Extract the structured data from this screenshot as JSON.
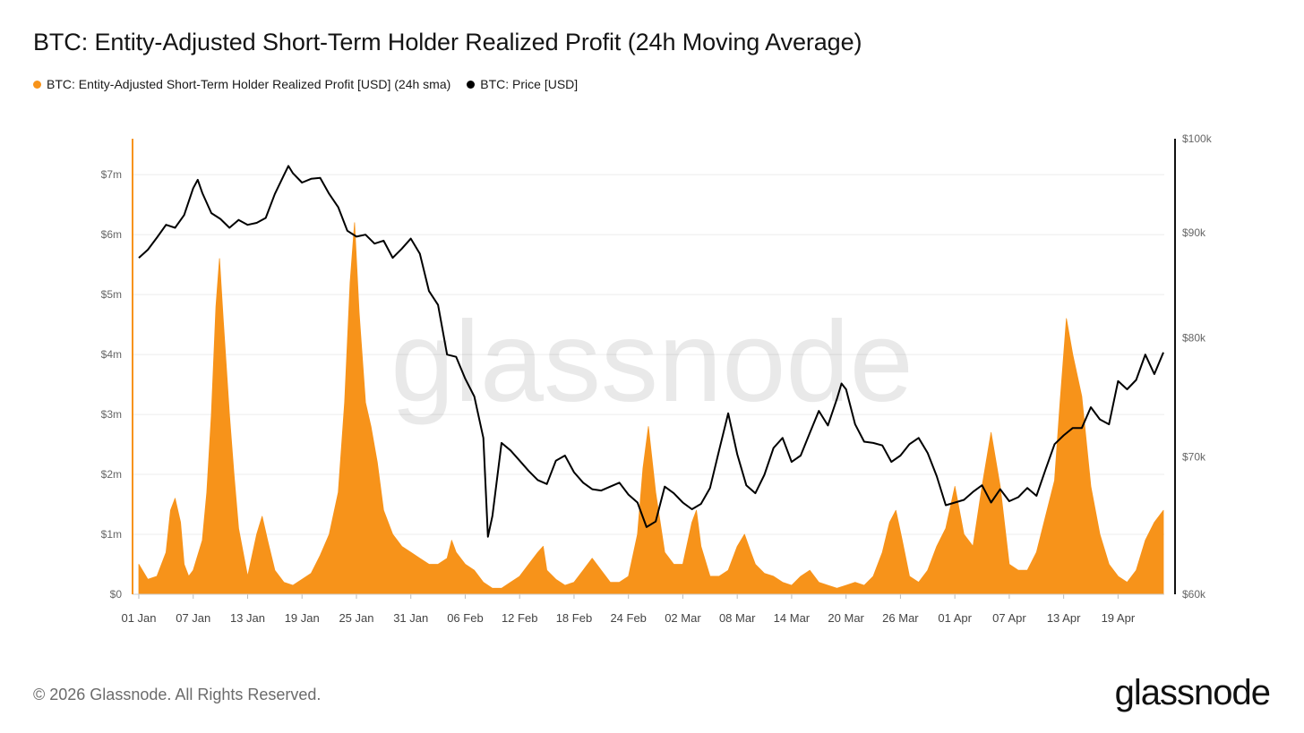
{
  "title": "BTC: Entity-Adjusted Short-Term Holder Realized Profit (24h Moving Average)",
  "legend": [
    {
      "label": "BTC: Entity-Adjusted Short-Term Holder Realized Profit [USD] (24h sma)",
      "color": "#f7931a"
    },
    {
      "label": "BTC: Price [USD]",
      "color": "#000000"
    }
  ],
  "footer": "© 2026 Glassnode. All Rights Reserved.",
  "brand": "glassnode",
  "watermark": "glassnode",
  "chart_data": {
    "type": "area",
    "x_ticks": [
      "01 Jan",
      "07 Jan",
      "13 Jan",
      "19 Jan",
      "25 Jan",
      "31 Jan",
      "06 Feb",
      "12 Feb",
      "18 Feb",
      "24 Feb",
      "02 Mar",
      "08 Mar",
      "14 Mar",
      "20 Mar",
      "26 Mar",
      "01 Apr",
      "07 Apr",
      "13 Apr",
      "19 Apr"
    ],
    "y_left_ticks": [
      "$0",
      "$1m",
      "$2m",
      "$3m",
      "$4m",
      "$5m",
      "$6m",
      "$7m"
    ],
    "y_left_range": [
      0,
      7600000
    ],
    "y_right_ticks": [
      "$60k",
      "$70k",
      "$80k",
      "$90k",
      "$100k"
    ],
    "y_right_range": [
      60000,
      100000
    ],
    "y_right_scale": "log",
    "grid": true,
    "legend_position": "top-left",
    "day_range": [
      0,
      113
    ],
    "series": [
      {
        "name": "BTC: Entity-Adjusted Short-Term Holder Realized Profit [USD] (24h sma)",
        "axis": "left",
        "color": "#f7931a",
        "style": "area",
        "points": [
          [
            0,
            500000
          ],
          [
            1,
            250000
          ],
          [
            2,
            300000
          ],
          [
            3,
            700000
          ],
          [
            3.5,
            1400000
          ],
          [
            4,
            1600000
          ],
          [
            4.6,
            1200000
          ],
          [
            5,
            500000
          ],
          [
            5.5,
            300000
          ],
          [
            6,
            400000
          ],
          [
            7,
            900000
          ],
          [
            7.5,
            1700000
          ],
          [
            8,
            3000000
          ],
          [
            8.5,
            4800000
          ],
          [
            8.9,
            5600000
          ],
          [
            9.3,
            4600000
          ],
          [
            10,
            3000000
          ],
          [
            10.5,
            2000000
          ],
          [
            11,
            1100000
          ],
          [
            12,
            300000
          ],
          [
            13,
            1000000
          ],
          [
            13.6,
            1300000
          ],
          [
            14.2,
            900000
          ],
          [
            15,
            400000
          ],
          [
            16,
            200000
          ],
          [
            17,
            150000
          ],
          [
            18,
            250000
          ],
          [
            19,
            350000
          ],
          [
            20,
            650000
          ],
          [
            21,
            1000000
          ],
          [
            22,
            1700000
          ],
          [
            22.7,
            3200000
          ],
          [
            23.3,
            5200000
          ],
          [
            23.8,
            6200000
          ],
          [
            24.3,
            4700000
          ],
          [
            25,
            3200000
          ],
          [
            25.6,
            2800000
          ],
          [
            26.3,
            2200000
          ],
          [
            27,
            1400000
          ],
          [
            28,
            1000000
          ],
          [
            29,
            800000
          ],
          [
            30,
            700000
          ],
          [
            31,
            600000
          ],
          [
            32,
            500000
          ],
          [
            33,
            500000
          ],
          [
            34,
            600000
          ],
          [
            34.5,
            900000
          ],
          [
            35,
            700000
          ],
          [
            36,
            500000
          ],
          [
            37,
            400000
          ],
          [
            38,
            200000
          ],
          [
            39,
            100000
          ],
          [
            40,
            100000
          ],
          [
            41,
            200000
          ],
          [
            42,
            300000
          ],
          [
            43,
            500000
          ],
          [
            44,
            700000
          ],
          [
            44.6,
            800000
          ],
          [
            45,
            400000
          ],
          [
            46,
            250000
          ],
          [
            47,
            150000
          ],
          [
            48,
            200000
          ],
          [
            49,
            400000
          ],
          [
            50,
            600000
          ],
          [
            51,
            400000
          ],
          [
            52,
            200000
          ],
          [
            53,
            200000
          ],
          [
            54,
            300000
          ],
          [
            55,
            1000000
          ],
          [
            55.6,
            2100000
          ],
          [
            56.2,
            2800000
          ],
          [
            57,
            1700000
          ],
          [
            58,
            700000
          ],
          [
            59,
            500000
          ],
          [
            60,
            500000
          ],
          [
            61,
            1200000
          ],
          [
            61.5,
            1400000
          ],
          [
            62,
            800000
          ],
          [
            63,
            300000
          ],
          [
            64,
            300000
          ],
          [
            65,
            400000
          ],
          [
            66,
            800000
          ],
          [
            66.8,
            1000000
          ],
          [
            67.5,
            700000
          ],
          [
            68,
            500000
          ],
          [
            69,
            350000
          ],
          [
            70,
            300000
          ],
          [
            71,
            200000
          ],
          [
            72,
            150000
          ],
          [
            73,
            300000
          ],
          [
            74,
            400000
          ],
          [
            75,
            200000
          ],
          [
            76,
            150000
          ],
          [
            77,
            100000
          ],
          [
            78,
            150000
          ],
          [
            79,
            200000
          ],
          [
            80,
            150000
          ],
          [
            81,
            300000
          ],
          [
            82,
            700000
          ],
          [
            82.8,
            1200000
          ],
          [
            83.5,
            1400000
          ],
          [
            84.2,
            900000
          ],
          [
            85,
            300000
          ],
          [
            86,
            200000
          ],
          [
            87,
            400000
          ],
          [
            88,
            800000
          ],
          [
            89,
            1100000
          ],
          [
            90,
            1800000
          ],
          [
            91,
            1000000
          ],
          [
            92,
            800000
          ],
          [
            93,
            1800000
          ],
          [
            94,
            2700000
          ],
          [
            95,
            1800000
          ],
          [
            96,
            500000
          ],
          [
            97,
            400000
          ],
          [
            98,
            400000
          ],
          [
            99,
            700000
          ],
          [
            100,
            1300000
          ],
          [
            101,
            1900000
          ],
          [
            101.6,
            3200000
          ],
          [
            102.3,
            4600000
          ],
          [
            103,
            4000000
          ],
          [
            104,
            3300000
          ],
          [
            105,
            1800000
          ],
          [
            106,
            1000000
          ],
          [
            107,
            500000
          ],
          [
            108,
            300000
          ],
          [
            109,
            200000
          ],
          [
            110,
            400000
          ],
          [
            111,
            900000
          ],
          [
            112,
            1200000
          ],
          [
            113,
            1400000
          ]
        ]
      },
      {
        "name": "BTC: Price [USD]",
        "axis": "right",
        "color": "#000000",
        "style": "line",
        "points": [
          [
            0,
            87500
          ],
          [
            1,
            88300
          ],
          [
            2,
            89500
          ],
          [
            3,
            90800
          ],
          [
            4,
            90500
          ],
          [
            5,
            91800
          ],
          [
            6,
            94600
          ],
          [
            6.5,
            95500
          ],
          [
            7,
            94100
          ],
          [
            8,
            92000
          ],
          [
            9,
            91400
          ],
          [
            10,
            90500
          ],
          [
            11,
            91300
          ],
          [
            12,
            90800
          ],
          [
            13,
            91000
          ],
          [
            14,
            91500
          ],
          [
            15,
            94000
          ],
          [
            16,
            96000
          ],
          [
            16.5,
            97000
          ],
          [
            17,
            96200
          ],
          [
            18,
            95200
          ],
          [
            19,
            95600
          ],
          [
            20,
            95700
          ],
          [
            21,
            94000
          ],
          [
            22,
            92600
          ],
          [
            23,
            90200
          ],
          [
            24,
            89600
          ],
          [
            25,
            89800
          ],
          [
            26,
            88900
          ],
          [
            27,
            89200
          ],
          [
            28,
            87500
          ],
          [
            29,
            88400
          ],
          [
            30,
            89400
          ],
          [
            31,
            87900
          ],
          [
            32,
            84300
          ],
          [
            33,
            83000
          ],
          [
            34,
            78500
          ],
          [
            35,
            78300
          ],
          [
            36,
            76400
          ],
          [
            37,
            74900
          ],
          [
            38,
            71500
          ],
          [
            38.5,
            64000
          ],
          [
            39,
            65500
          ],
          [
            40,
            71100
          ],
          [
            41,
            70500
          ],
          [
            42,
            69700
          ],
          [
            43,
            68900
          ],
          [
            44,
            68200
          ],
          [
            45,
            67900
          ],
          [
            46,
            69700
          ],
          [
            47,
            70100
          ],
          [
            48,
            68800
          ],
          [
            49,
            68000
          ],
          [
            50,
            67500
          ],
          [
            51,
            67400
          ],
          [
            52,
            67700
          ],
          [
            53,
            68000
          ],
          [
            54,
            67100
          ],
          [
            55,
            66500
          ],
          [
            56,
            64700
          ],
          [
            57,
            65100
          ],
          [
            58,
            67700
          ],
          [
            59,
            67200
          ],
          [
            60,
            66500
          ],
          [
            61,
            66000
          ],
          [
            62,
            66400
          ],
          [
            63,
            67600
          ],
          [
            64,
            70500
          ],
          [
            65,
            73500
          ],
          [
            66,
            70200
          ],
          [
            67,
            67800
          ],
          [
            68,
            67200
          ],
          [
            69,
            68600
          ],
          [
            70,
            70700
          ],
          [
            71,
            71500
          ],
          [
            72,
            69600
          ],
          [
            73,
            70100
          ],
          [
            74,
            71900
          ],
          [
            75,
            73700
          ],
          [
            76,
            72500
          ],
          [
            77,
            74700
          ],
          [
            77.5,
            76000
          ],
          [
            78,
            75500
          ],
          [
            79,
            72600
          ],
          [
            80,
            71200
          ],
          [
            81,
            71100
          ],
          [
            82,
            70900
          ],
          [
            83,
            69600
          ],
          [
            84,
            70100
          ],
          [
            85,
            71000
          ],
          [
            86,
            71500
          ],
          [
            87,
            70300
          ],
          [
            88,
            68500
          ],
          [
            89,
            66300
          ],
          [
            90,
            66500
          ],
          [
            91,
            66700
          ],
          [
            92,
            67300
          ],
          [
            93,
            67800
          ],
          [
            94,
            66500
          ],
          [
            95,
            67500
          ],
          [
            96,
            66600
          ],
          [
            97,
            66900
          ],
          [
            98,
            67600
          ],
          [
            99,
            67000
          ],
          [
            100,
            69000
          ],
          [
            101,
            71000
          ],
          [
            102,
            71700
          ],
          [
            103,
            72300
          ],
          [
            104,
            72300
          ],
          [
            105,
            74000
          ],
          [
            106,
            73000
          ],
          [
            107,
            72600
          ],
          [
            108,
            76200
          ],
          [
            109,
            75500
          ],
          [
            110,
            76300
          ],
          [
            111,
            78500
          ],
          [
            112,
            76800
          ],
          [
            113,
            78700
          ]
        ]
      }
    ]
  }
}
